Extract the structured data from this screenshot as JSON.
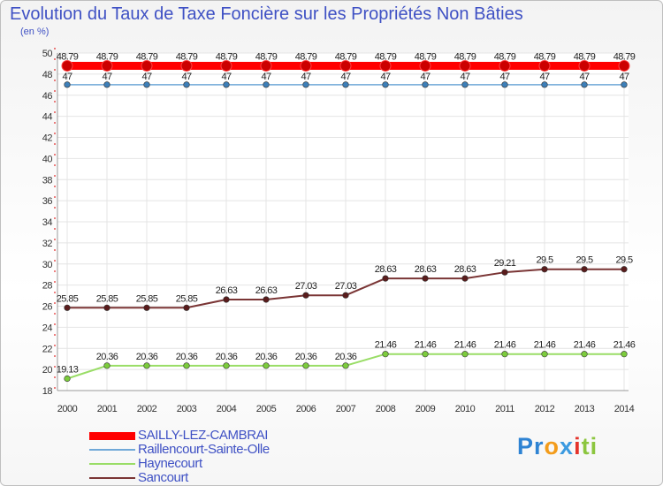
{
  "chart_data": {
    "type": "line",
    "title": "Evolution du Taux de Taxe Foncière sur les Propriétés Non Bâties",
    "subtitle": "(en %)",
    "xlabel": "",
    "ylabel": "",
    "ylim": [
      18,
      50
    ],
    "ytick_step": 2,
    "categories": [
      "2000",
      "2001",
      "2002",
      "2003",
      "2004",
      "2005",
      "2006",
      "2007",
      "2008",
      "2009",
      "2010",
      "2011",
      "2012",
      "2013",
      "2014"
    ],
    "series": [
      {
        "name": "SAILLY-LEZ-CAMBRAI",
        "color": "#ff0000",
        "marker": "#cc0000",
        "width": 9,
        "values": [
          48.79,
          48.79,
          48.79,
          48.79,
          48.79,
          48.79,
          48.79,
          48.79,
          48.79,
          48.79,
          48.79,
          48.79,
          48.79,
          48.79,
          48.79
        ],
        "labels": [
          "48.79",
          "48.79",
          "48.79",
          "48.79",
          "48.79",
          "48.79",
          "48.79",
          "48.79",
          "48.79",
          "48.79",
          "48.79",
          "48.79",
          "48.79",
          "48.79",
          "48.79"
        ]
      },
      {
        "name": "Raillencourt-Sainte-Olle",
        "color": "#6fa8d8",
        "marker": "#3d7fb8",
        "width": 1.5,
        "values": [
          47,
          47,
          47,
          47,
          47,
          47,
          47,
          47,
          47,
          47,
          47,
          47,
          47,
          47,
          47
        ],
        "labels": [
          "47",
          "47",
          "47",
          "47",
          "47",
          "47",
          "47",
          "47",
          "47",
          "47",
          "47",
          "47",
          "47",
          "47",
          "47"
        ]
      },
      {
        "name": "Haynecourt",
        "color": "#99dd66",
        "marker": "#7ccc3c",
        "width": 2,
        "values": [
          19.13,
          20.36,
          20.36,
          20.36,
          20.36,
          20.36,
          20.36,
          20.36,
          21.46,
          21.46,
          21.46,
          21.46,
          21.46,
          21.46,
          21.46
        ],
        "labels": [
          "19.13",
          "20.36",
          "20.36",
          "20.36",
          "20.36",
          "20.36",
          "20.36",
          "20.36",
          "21.46",
          "21.46",
          "21.46",
          "21.46",
          "21.46",
          "21.46",
          "21.46"
        ]
      },
      {
        "name": "Sancourt",
        "color": "#7a3535",
        "marker": "#5a1c1c",
        "width": 2,
        "values": [
          25.85,
          25.85,
          25.85,
          25.85,
          26.63,
          26.63,
          27.03,
          27.03,
          28.63,
          28.63,
          28.63,
          29.21,
          29.5,
          29.5,
          29.5
        ],
        "labels": [
          "25.85",
          "25.85",
          "25.85",
          "25.85",
          "26.63",
          "26.63",
          "27.03",
          "27.03",
          "28.63",
          "28.63",
          "28.63",
          "29.21",
          "29.5",
          "29.5",
          "29.5"
        ]
      }
    ]
  },
  "logo": {
    "p1": "Pr",
    "p2": "o",
    "p3": "x",
    "p4": "i",
    "p5": "ti"
  }
}
